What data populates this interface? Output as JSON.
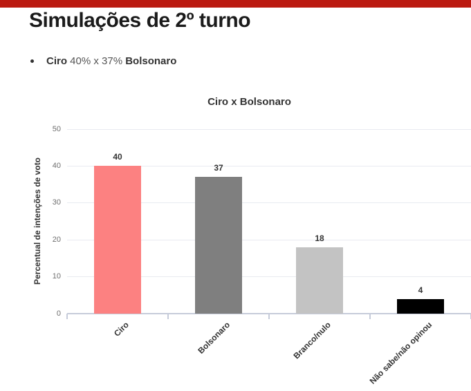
{
  "page": {
    "title": "Simulações de 2º turno",
    "bullet": {
      "candidate_a": "Ciro",
      "versus": " 40% x 37% ",
      "candidate_b": "Bolsonaro"
    }
  },
  "colors": {
    "accent_red": "#bb1a10",
    "grid": "#e8eaf0",
    "axis": "#c6ccda",
    "tick_label": "#6e6e6e",
    "text_dark": "#333333"
  },
  "chart_data": {
    "type": "bar",
    "title": "Ciro x Bolsonaro",
    "xlabel": "",
    "ylabel": "Percentual de intenções de voto",
    "ylim": [
      0,
      50
    ],
    "yticks": [
      0,
      10,
      20,
      30,
      40,
      50
    ],
    "grid": true,
    "legend": false,
    "value_labels_shown": true,
    "categories": [
      "Ciro",
      "Bolsonaro",
      "Branco/nulo",
      "Não sabe/não opinou"
    ],
    "values": [
      40,
      37,
      18,
      4
    ],
    "bar_colors": [
      "#fc8181",
      "#7f7f7f",
      "#c3c3c3",
      "#000000"
    ]
  }
}
